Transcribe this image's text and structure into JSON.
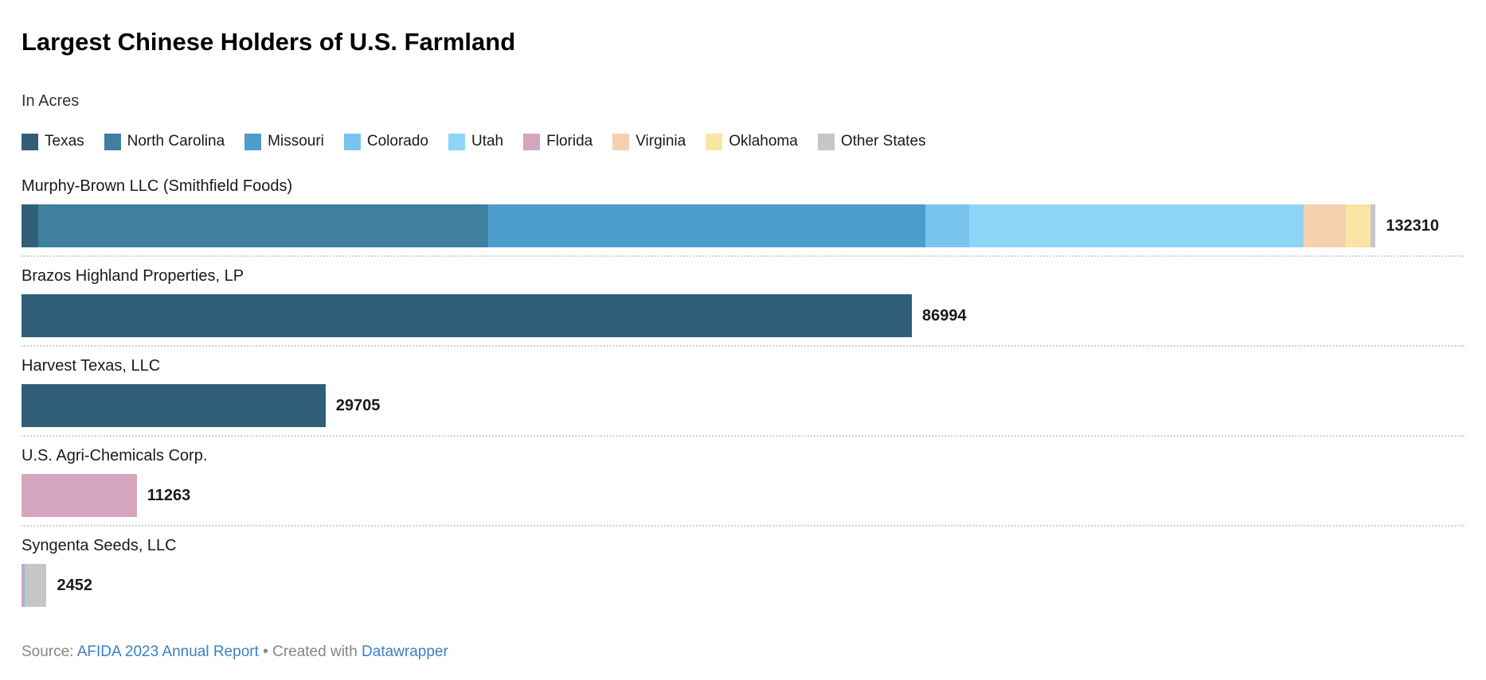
{
  "header": {
    "title": "Largest Chinese Holders of U.S. Farmland",
    "subtitle": "In Acres"
  },
  "legend": [
    {
      "label": "Texas",
      "color": "#315f78"
    },
    {
      "label": "North Carolina",
      "color": "#3f7f9f"
    },
    {
      "label": "Missouri",
      "color": "#4c9dca"
    },
    {
      "label": "Colorado",
      "color": "#79c4ef"
    },
    {
      "label": "Utah",
      "color": "#8dd5f7"
    },
    {
      "label": "Florida",
      "color": "#d4a5bd"
    },
    {
      "label": "Virginia",
      "color": "#f7d1af"
    },
    {
      "label": "Oklahoma",
      "color": "#fae4a4"
    },
    {
      "label": "Other States",
      "color": "#c6c6c6"
    }
  ],
  "chart_data": {
    "type": "bar",
    "stacked": true,
    "orientation": "horizontal",
    "title": "Largest Chinese Holders of U.S. Farmland",
    "unit_label": "In Acres",
    "axis_max": 141000,
    "grid": false,
    "legend_position": "top",
    "colors": {
      "Texas": "#315f78",
      "North Carolina": "#3f7f9f",
      "Missouri": "#4c9dca",
      "Colorado": "#79c4ef",
      "Utah": "#8dd5f7",
      "Florida": "#d4a5bd",
      "Virginia": "#f7d1af",
      "Oklahoma": "#fae4a4",
      "Other States": "#c6c6c6"
    },
    "bars": [
      {
        "label": "Murphy-Brown LLC (Smithfield Foods)",
        "total": 132310,
        "value_label": "132310",
        "segments": [
          {
            "state": "Texas",
            "value": 1600
          },
          {
            "state": "North Carolina",
            "value": 44000
          },
          {
            "state": "Missouri",
            "value": 42700
          },
          {
            "state": "Colorado",
            "value": 4300
          },
          {
            "state": "Utah",
            "value": 32700
          },
          {
            "state": "Virginia",
            "value": 4100
          },
          {
            "state": "Oklahoma",
            "value": 2400
          },
          {
            "state": "Other States",
            "value": 510
          }
        ]
      },
      {
        "label": "Brazos Highland Properties, LP",
        "total": 86994,
        "value_label": "86994",
        "segments": [
          {
            "state": "Texas",
            "value": 86994
          }
        ]
      },
      {
        "label": "Harvest Texas, LLC",
        "total": 29705,
        "value_label": "29705",
        "segments": [
          {
            "state": "Texas",
            "value": 29705
          }
        ]
      },
      {
        "label": "U.S. Agri-Chemicals Corp.",
        "total": 11263,
        "value_label": "11263",
        "segments": [
          {
            "state": "Florida",
            "value": 11263
          }
        ]
      },
      {
        "label": "Syngenta Seeds, LLC",
        "total": 2452,
        "value_label": "2452",
        "segments": [
          {
            "state": "Florida",
            "value": 150
          },
          {
            "state": "Colorado",
            "value": 150
          },
          {
            "state": "Other States",
            "value": 2152
          }
        ]
      }
    ]
  },
  "footer": {
    "source_prefix": "Source:",
    "source_link": "AFIDA 2023 Annual Report",
    "separator": "•",
    "created_with": "Created with",
    "tool_link": "Datawrapper"
  }
}
